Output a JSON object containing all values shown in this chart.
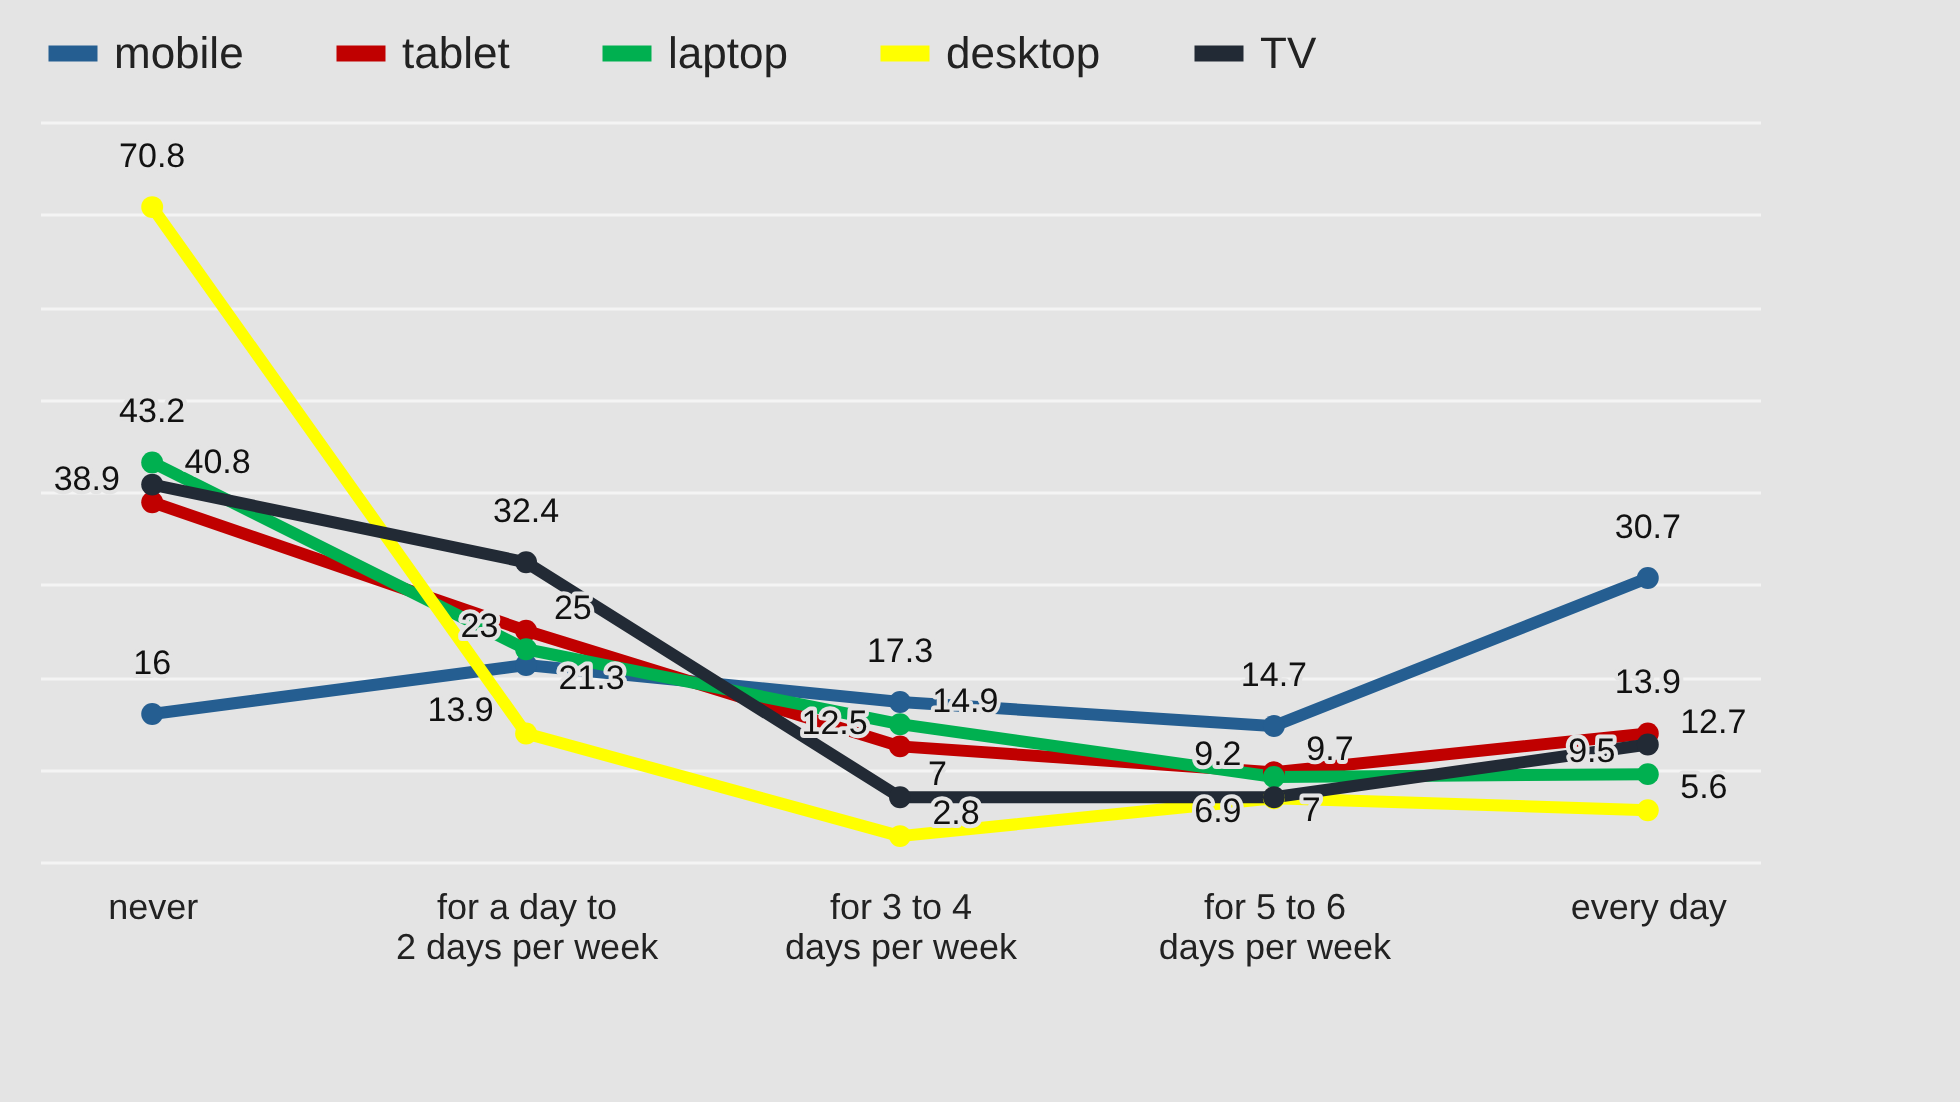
{
  "chart_data": {
    "type": "line",
    "categories": [
      "never",
      "for a day to 2 days per week",
      "for 3 to 4 days per week",
      "for 5 to 6 days per week",
      "every day"
    ],
    "series": [
      {
        "name": "mobile",
        "color": "#255e91",
        "values": [
          16,
          21.3,
          17.3,
          14.7,
          30.7
        ]
      },
      {
        "name": "tablet",
        "color": "#c00000",
        "values": [
          38.9,
          25,
          12.5,
          9.7,
          13.9
        ]
      },
      {
        "name": "laptop",
        "color": "#00b050",
        "values": [
          43.2,
          23,
          14.9,
          9.2,
          9.5
        ]
      },
      {
        "name": "desktop",
        "color": "#ffff00",
        "values": [
          70.8,
          13.9,
          2.8,
          6.9,
          5.6
        ]
      },
      {
        "name": "TV",
        "color": "#222a35",
        "values": [
          40.8,
          32.4,
          7,
          7,
          12.7
        ]
      }
    ],
    "ylim": [
      0,
      80
    ],
    "yticks": [
      0,
      10,
      20,
      30,
      40,
      50,
      60,
      70,
      80
    ],
    "grid": "y",
    "tick_labels": "x",
    "legend": "top",
    "marker": "circle",
    "line_style": "solid",
    "data_labels": true
  }
}
